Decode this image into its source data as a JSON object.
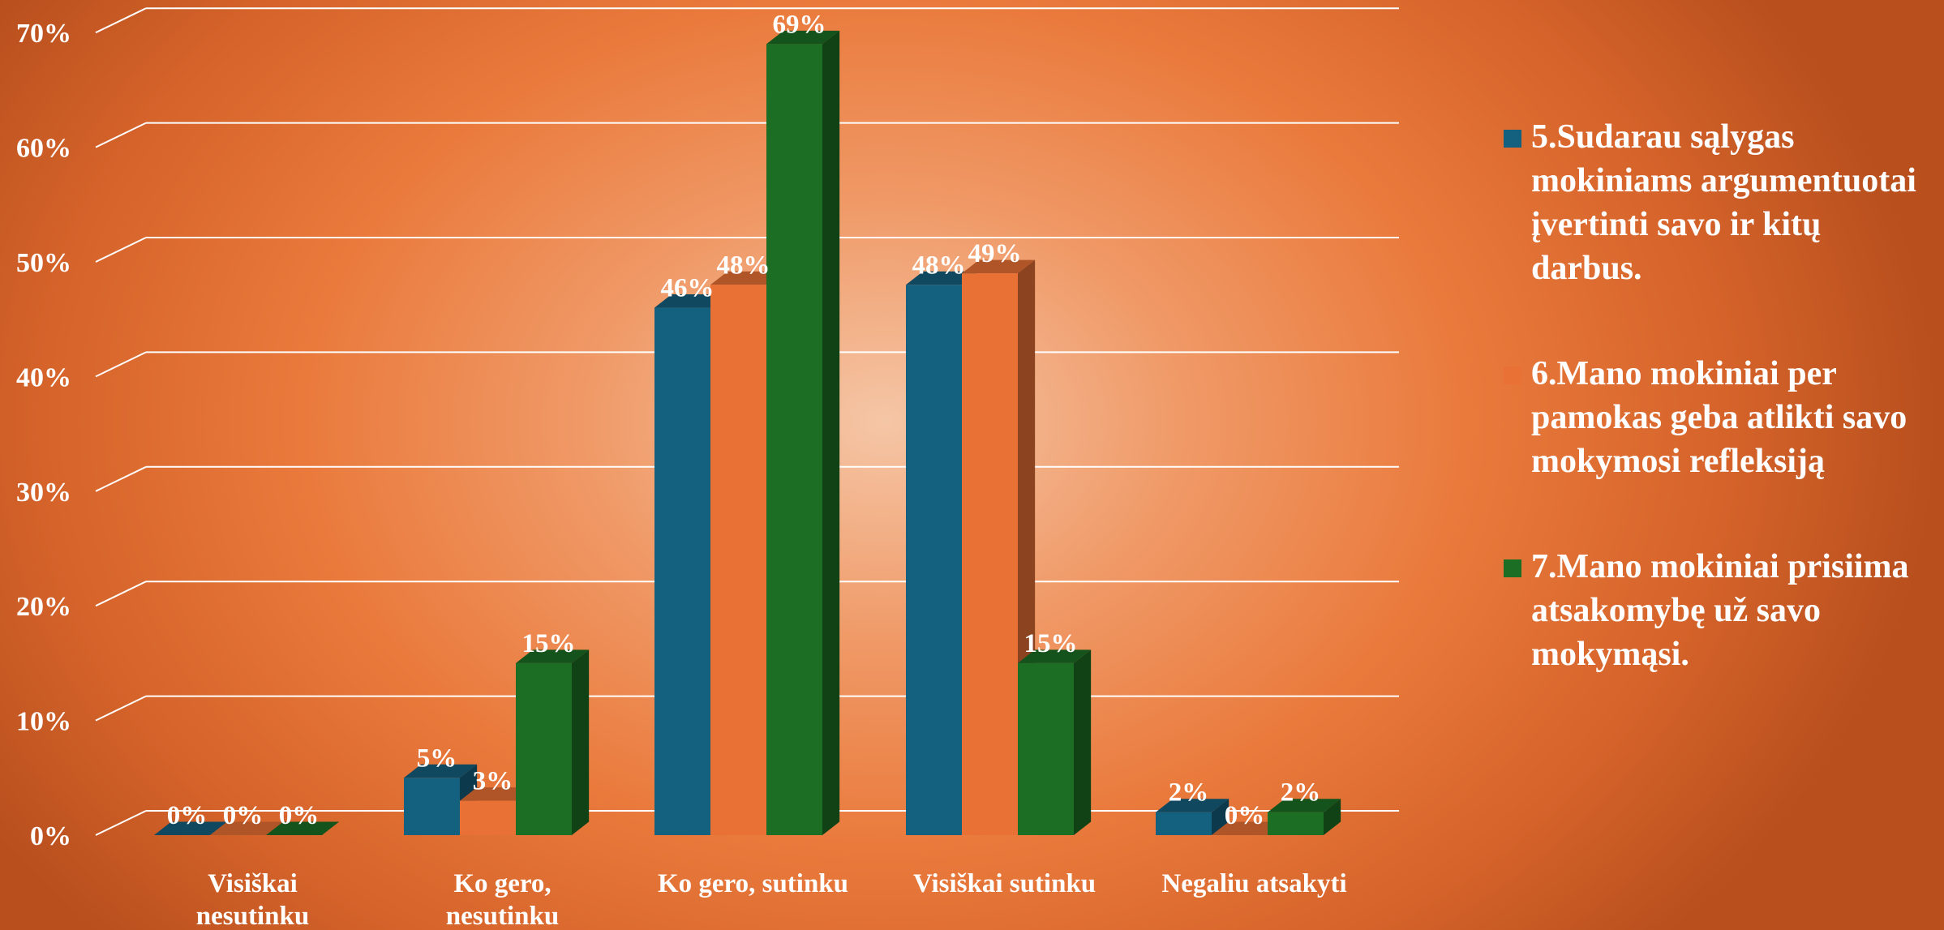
{
  "chart_data": {
    "type": "bar",
    "categories": [
      [
        "Visiškai",
        "nesutinku"
      ],
      [
        "Ko gero,",
        "nesutinku"
      ],
      [
        "Ko gero, sutinku"
      ],
      [
        "Visiškai sutinku"
      ],
      [
        "Negaliu atsakyti"
      ]
    ],
    "series": [
      {
        "name": "5.Sudarau sąlygas mokiniams argumentuotai įvertinti savo ir kitų darbus.",
        "values": [
          0,
          5,
          46,
          48,
          2
        ],
        "labels": [
          "0%",
          "5%",
          "46%",
          "48%",
          "2%"
        ],
        "color": "#14607f"
      },
      {
        "name": "6.Mano mokiniai per pamokas geba atlikti savo mokymosi refleksiją",
        "values": [
          0,
          3,
          48,
          49,
          0
        ],
        "labels": [
          "0%",
          "3%",
          "48%",
          "49%",
          "0%"
        ],
        "color": "#ea7135"
      },
      {
        "name": "7.Mano mokiniai prisiima atsakomybę už savo mokymąsi.",
        "values": [
          0,
          15,
          69,
          15,
          2
        ],
        "labels": [
          "0%",
          "15%",
          "69%",
          "15%",
          "2%"
        ],
        "color": "#1b6e24"
      }
    ],
    "yticks": [
      "0%",
      "10%",
      "20%",
      "30%",
      "40%",
      "50%",
      "60%",
      "70%"
    ],
    "ylim": [
      0,
      70
    ],
    "grid": true,
    "legend": "right",
    "projection": "3d"
  }
}
